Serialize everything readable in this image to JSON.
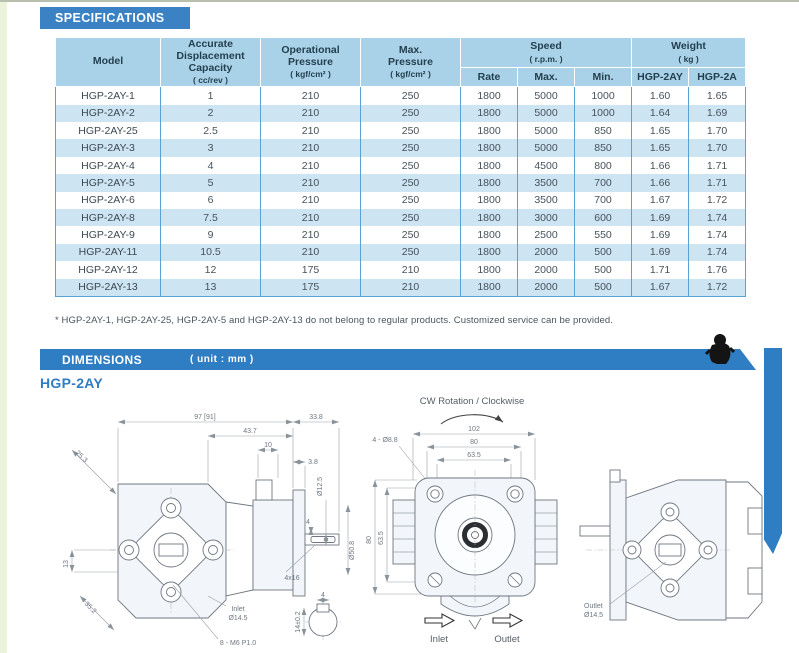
{
  "page": {
    "spec_banner": "SPECIFICATIONS",
    "dim_banner": "DIMENSIONS",
    "dim_unit": "( unit : mm )",
    "model_heading": "HGP-2AY",
    "footnote": "* HGP-2AY-1, HGP-2AY-25, HGP-2AY-5 and HGP-2AY-13 do not belong to regular products. Customized service can be provided.",
    "colors": {
      "banner_blue": "#3a82c4",
      "dim_banner_blue": "#2f7dc3",
      "header_bg": "#a9d2e8",
      "alt_row_bg": "#cde4f2",
      "table_border": "#58a3d3"
    }
  },
  "spec_table": {
    "head": {
      "model": "Model",
      "capacity": "Accurate\nDisplacement\nCapacity",
      "capacity_unit": "( cc/rev )",
      "op_pressure": "Operational\nPressure",
      "pressure_unit": "( kgf/cm² )",
      "max_pressure": "Max.\nPressure",
      "speed": "Speed",
      "speed_unit": "( r.p.m. )",
      "weight": "Weight",
      "weight_unit": "( kg )",
      "rate": "Rate",
      "max": "Max.",
      "min": "Min.",
      "weight_col1": "HGP-2AY",
      "weight_col2": "HGP-2A"
    },
    "rows": [
      [
        "HGP-2AY-1",
        "1",
        "210",
        "250",
        "1800",
        "5000",
        "1000",
        "1.60",
        "1.65"
      ],
      [
        "HGP-2AY-2",
        "2",
        "210",
        "250",
        "1800",
        "5000",
        "1000",
        "1.64",
        "1.69"
      ],
      [
        "HGP-2AY-25",
        "2.5",
        "210",
        "250",
        "1800",
        "5000",
        "850",
        "1.65",
        "1.70"
      ],
      [
        "HGP-2AY-3",
        "3",
        "210",
        "250",
        "1800",
        "5000",
        "850",
        "1.65",
        "1.70"
      ],
      [
        "HGP-2AY-4",
        "4",
        "210",
        "250",
        "1800",
        "4500",
        "800",
        "1.66",
        "1.71"
      ],
      [
        "HGP-2AY-5",
        "5",
        "210",
        "250",
        "1800",
        "3500",
        "700",
        "1.66",
        "1.71"
      ],
      [
        "HGP-2AY-6",
        "6",
        "210",
        "250",
        "1800",
        "3500",
        "700",
        "1.67",
        "1.72"
      ],
      [
        "HGP-2AY-8",
        "7.5",
        "210",
        "250",
        "1800",
        "3000",
        "600",
        "1.69",
        "1.74"
      ],
      [
        "HGP-2AY-9",
        "9",
        "210",
        "250",
        "1800",
        "2500",
        "550",
        "1.69",
        "1.74"
      ],
      [
        "HGP-2AY-11",
        "10.5",
        "210",
        "250",
        "1800",
        "2000",
        "500",
        "1.69",
        "1.74"
      ],
      [
        "HGP-2AY-12",
        "12",
        "175",
        "210",
        "1800",
        "2000",
        "500",
        "1.71",
        "1.76"
      ],
      [
        "HGP-2AY-13",
        "13",
        "175",
        "210",
        "1800",
        "2000",
        "500",
        "1.67",
        "1.72"
      ]
    ]
  },
  "drawing_side": {
    "d_97": "97 [91]",
    "d_338": "33.8",
    "d_437": "43.7",
    "d_10": "10",
    "d_38": "3.8",
    "d_253": "25.3",
    "d_dia125": "Ø12.5",
    "d_dia508": "Ø50.8",
    "d_4": "4",
    "d_13": "13",
    "d_4x16": "4x16",
    "inlet_word": "Inlet",
    "inlet_dia": "Ø14.5",
    "d_bolts": "8 - M6 P1.0",
    "d_352": "35.2",
    "key_d_14": "14±0.2",
    "key_d_4": "4"
  },
  "drawing_front": {
    "rotation_label": "CW Rotation / Clockwise",
    "d_102": "102",
    "d_80_top": "80",
    "d_635_top": "63.5",
    "d_holes": "4 - Ø8.8",
    "d_80_left": "80",
    "d_635_left": "63.5",
    "inlet_label": "Inlet",
    "outlet_label": "Outlet"
  },
  "drawing_rear": {
    "outlet_word": "Outlet",
    "outlet_dia": "Ø14.5"
  }
}
